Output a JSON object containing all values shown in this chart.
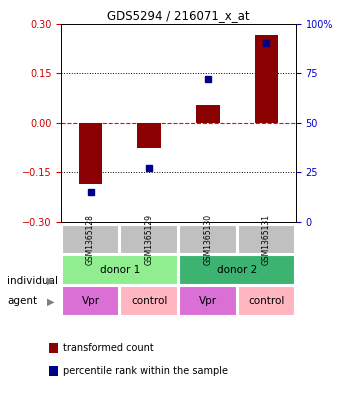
{
  "title": "GDS5294 / 216071_x_at",
  "samples": [
    "GSM1365128",
    "GSM1365129",
    "GSM1365130",
    "GSM1365131"
  ],
  "red_values": [
    -0.185,
    -0.075,
    0.055,
    0.265
  ],
  "blue_values_pct": [
    15,
    27,
    72,
    90
  ],
  "ylim_left": [
    -0.3,
    0.3
  ],
  "ylim_right": [
    0,
    100
  ],
  "yticks_left": [
    -0.3,
    -0.15,
    0,
    0.15,
    0.3
  ],
  "yticks_right": [
    0,
    25,
    50,
    75,
    100
  ],
  "hlines_dotted": [
    -0.15,
    0.15
  ],
  "hline_dashed_red": 0,
  "individuals": [
    "donor 1",
    "donor 1",
    "donor 2",
    "donor 2"
  ],
  "agents": [
    "Vpr",
    "control",
    "Vpr",
    "control"
  ],
  "individual_groups": [
    {
      "label": "donor 1",
      "cols": [
        0,
        1
      ],
      "color": "#90EE90"
    },
    {
      "label": "donor 2",
      "cols": [
        2,
        3
      ],
      "color": "#3CB371"
    }
  ],
  "agent_colors": [
    "#EE82EE",
    "#EE82EE",
    "#EE82EE",
    "#EE82EE"
  ],
  "agent_vpr_color": "#DA70D6",
  "agent_ctrl_color": "#FFB6C1",
  "bar_color": "#8B0000",
  "dot_color": "#00008B",
  "sample_bg_color": "#C0C0C0",
  "left_tick_color": "#CC0000",
  "right_tick_color": "#0000CC",
  "legend_red_label": "transformed count",
  "legend_blue_label": "percentile rank within the sample",
  "individual_label": "individual",
  "agent_label": "agent",
  "bar_width": 0.4
}
